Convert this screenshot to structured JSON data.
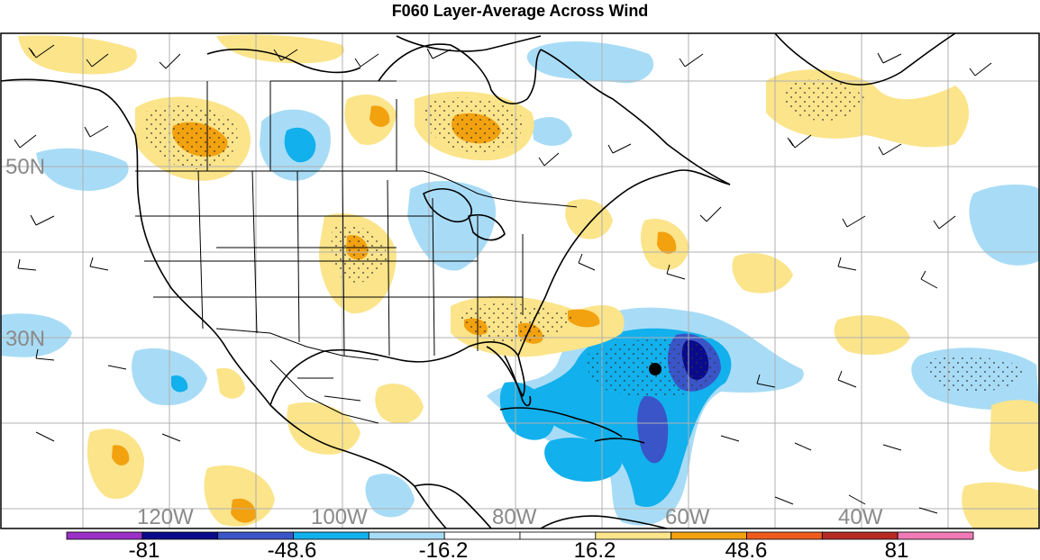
{
  "title": "F060 Layer-Average Across Wind",
  "latitude_labels": [
    "50N",
    "30N"
  ],
  "longitude_labels": [
    "120W",
    "100W",
    "80W",
    "60W",
    "40W"
  ],
  "colorbar": {
    "labels": [
      "-81",
      "-48.6",
      "-16.2",
      "16.2",
      "48.6",
      "81"
    ],
    "colors": [
      "#9b30c8",
      "#0a0a8c",
      "#3a55c8",
      "#12b0ec",
      "#a8dcf6",
      "#ffffff",
      "#ffffff",
      "#fbe48a",
      "#f2a10f",
      "#ef5a1d",
      "#b52a23",
      "#f07ab6"
    ]
  },
  "colors": {
    "neg_light": "#a8dcf6",
    "neg_mid": "#12b0ec",
    "neg_strong": "#3a55c8",
    "neg_extreme": "#0a0a8c",
    "pos_light": "#fbe48a",
    "pos_mid": "#f2a10f",
    "gridline": "#b0b0b0",
    "coastline": "#000000"
  }
}
